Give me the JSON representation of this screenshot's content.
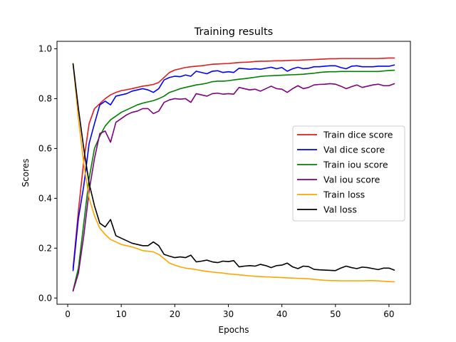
{
  "chart_data": {
    "type": "line",
    "title": "Training results",
    "xlabel": "Epochs",
    "ylabel": "Scores",
    "xlim": [
      -2,
      64
    ],
    "ylim": [
      -0.025,
      1.03
    ],
    "xticks": [
      0,
      10,
      20,
      30,
      40,
      50,
      60
    ],
    "yticks": [
      0.0,
      0.2,
      0.4,
      0.6,
      0.8,
      1.0
    ],
    "ytick_labels": [
      "0.0",
      "0.2",
      "0.4",
      "0.6",
      "0.8",
      "1.0"
    ],
    "grid": false,
    "legend_position": "center-right",
    "x": [
      1,
      2,
      3,
      4,
      5,
      6,
      7,
      8,
      9,
      10,
      11,
      12,
      13,
      14,
      15,
      16,
      17,
      18,
      19,
      20,
      21,
      22,
      23,
      24,
      25,
      26,
      27,
      28,
      29,
      30,
      31,
      32,
      33,
      34,
      35,
      36,
      37,
      38,
      39,
      40,
      41,
      42,
      43,
      44,
      45,
      46,
      47,
      48,
      49,
      50,
      51,
      52,
      53,
      54,
      55,
      56,
      57,
      58,
      59,
      60,
      61
    ],
    "series": [
      {
        "name": "Train dice score",
        "color": "#e41a1c",
        "values": [
          0.12,
          0.35,
          0.55,
          0.7,
          0.76,
          0.78,
          0.8,
          0.815,
          0.825,
          0.832,
          0.836,
          0.84,
          0.845,
          0.85,
          0.853,
          0.857,
          0.865,
          0.885,
          0.905,
          0.915,
          0.92,
          0.925,
          0.928,
          0.93,
          0.932,
          0.935,
          0.938,
          0.939,
          0.94,
          0.941,
          0.943,
          0.945,
          0.946,
          0.947,
          0.949,
          0.95,
          0.95,
          0.951,
          0.952,
          0.952,
          0.953,
          0.954,
          0.954,
          0.955,
          0.956,
          0.957,
          0.958,
          0.959,
          0.96,
          0.96,
          0.961,
          0.961,
          0.961,
          0.961,
          0.961,
          0.961,
          0.961,
          0.961,
          0.962,
          0.963,
          0.963
        ]
      },
      {
        "name": "Val dice score",
        "color": "#0000ff",
        "values": [
          0.11,
          0.32,
          0.45,
          0.62,
          0.7,
          0.775,
          0.79,
          0.775,
          0.81,
          0.815,
          0.82,
          0.83,
          0.835,
          0.84,
          0.835,
          0.825,
          0.84,
          0.875,
          0.885,
          0.89,
          0.888,
          0.895,
          0.89,
          0.91,
          0.905,
          0.9,
          0.91,
          0.912,
          0.905,
          0.908,
          0.905,
          0.922,
          0.92,
          0.918,
          0.92,
          0.918,
          0.922,
          0.926,
          0.92,
          0.925,
          0.91,
          0.92,
          0.926,
          0.92,
          0.922,
          0.928,
          0.928,
          0.93,
          0.932,
          0.932,
          0.925,
          0.92,
          0.93,
          0.932,
          0.928,
          0.928,
          0.928,
          0.93,
          0.93,
          0.93,
          0.935
        ]
      },
      {
        "name": "Train iou score",
        "color": "#008000",
        "values": [
          0.03,
          0.12,
          0.3,
          0.48,
          0.6,
          0.65,
          0.69,
          0.715,
          0.73,
          0.745,
          0.755,
          0.765,
          0.775,
          0.782,
          0.787,
          0.792,
          0.8,
          0.81,
          0.825,
          0.832,
          0.84,
          0.845,
          0.85,
          0.855,
          0.858,
          0.862,
          0.868,
          0.87,
          0.87,
          0.872,
          0.875,
          0.878,
          0.88,
          0.883,
          0.886,
          0.889,
          0.891,
          0.892,
          0.893,
          0.894,
          0.895,
          0.896,
          0.897,
          0.898,
          0.9,
          0.902,
          0.905,
          0.907,
          0.908,
          0.908,
          0.909,
          0.909,
          0.909,
          0.909,
          0.909,
          0.909,
          0.909,
          0.909,
          0.911,
          0.913,
          0.914
        ]
      },
      {
        "name": "Val iou score",
        "color": "#800080",
        "values": [
          0.028,
          0.1,
          0.25,
          0.43,
          0.56,
          0.66,
          0.67,
          0.625,
          0.705,
          0.72,
          0.735,
          0.745,
          0.75,
          0.76,
          0.76,
          0.74,
          0.75,
          0.785,
          0.795,
          0.8,
          0.798,
          0.8,
          0.785,
          0.82,
          0.815,
          0.81,
          0.82,
          0.822,
          0.818,
          0.82,
          0.818,
          0.845,
          0.84,
          0.835,
          0.838,
          0.83,
          0.84,
          0.85,
          0.84,
          0.838,
          0.825,
          0.84,
          0.852,
          0.84,
          0.845,
          0.855,
          0.857,
          0.858,
          0.86,
          0.858,
          0.85,
          0.84,
          0.848,
          0.855,
          0.845,
          0.85,
          0.855,
          0.858,
          0.852,
          0.852,
          0.86
        ]
      },
      {
        "name": "Train loss",
        "color": "#ffa500",
        "values": [
          0.94,
          0.72,
          0.54,
          0.4,
          0.33,
          0.28,
          0.255,
          0.235,
          0.225,
          0.215,
          0.21,
          0.205,
          0.198,
          0.19,
          0.188,
          0.185,
          0.175,
          0.158,
          0.14,
          0.132,
          0.125,
          0.12,
          0.117,
          0.114,
          0.11,
          0.107,
          0.104,
          0.102,
          0.1,
          0.097,
          0.095,
          0.093,
          0.091,
          0.089,
          0.087,
          0.086,
          0.085,
          0.084,
          0.083,
          0.082,
          0.081,
          0.08,
          0.079,
          0.078,
          0.077,
          0.075,
          0.073,
          0.071,
          0.07,
          0.07,
          0.069,
          0.069,
          0.069,
          0.069,
          0.069,
          0.07,
          0.07,
          0.069,
          0.067,
          0.066,
          0.065
        ]
      },
      {
        "name": "Val loss",
        "color": "#000000",
        "values": [
          0.94,
          0.76,
          0.6,
          0.46,
          0.37,
          0.3,
          0.285,
          0.315,
          0.25,
          0.24,
          0.23,
          0.22,
          0.215,
          0.21,
          0.21,
          0.225,
          0.21,
          0.175,
          0.168,
          0.162,
          0.165,
          0.162,
          0.172,
          0.145,
          0.148,
          0.152,
          0.145,
          0.142,
          0.148,
          0.146,
          0.15,
          0.125,
          0.128,
          0.13,
          0.128,
          0.135,
          0.13,
          0.122,
          0.13,
          0.132,
          0.14,
          0.125,
          0.118,
          0.128,
          0.126,
          0.115,
          0.113,
          0.112,
          0.111,
          0.11,
          0.12,
          0.128,
          0.122,
          0.118,
          0.124,
          0.122,
          0.118,
          0.114,
          0.12,
          0.12,
          0.112
        ]
      }
    ]
  }
}
